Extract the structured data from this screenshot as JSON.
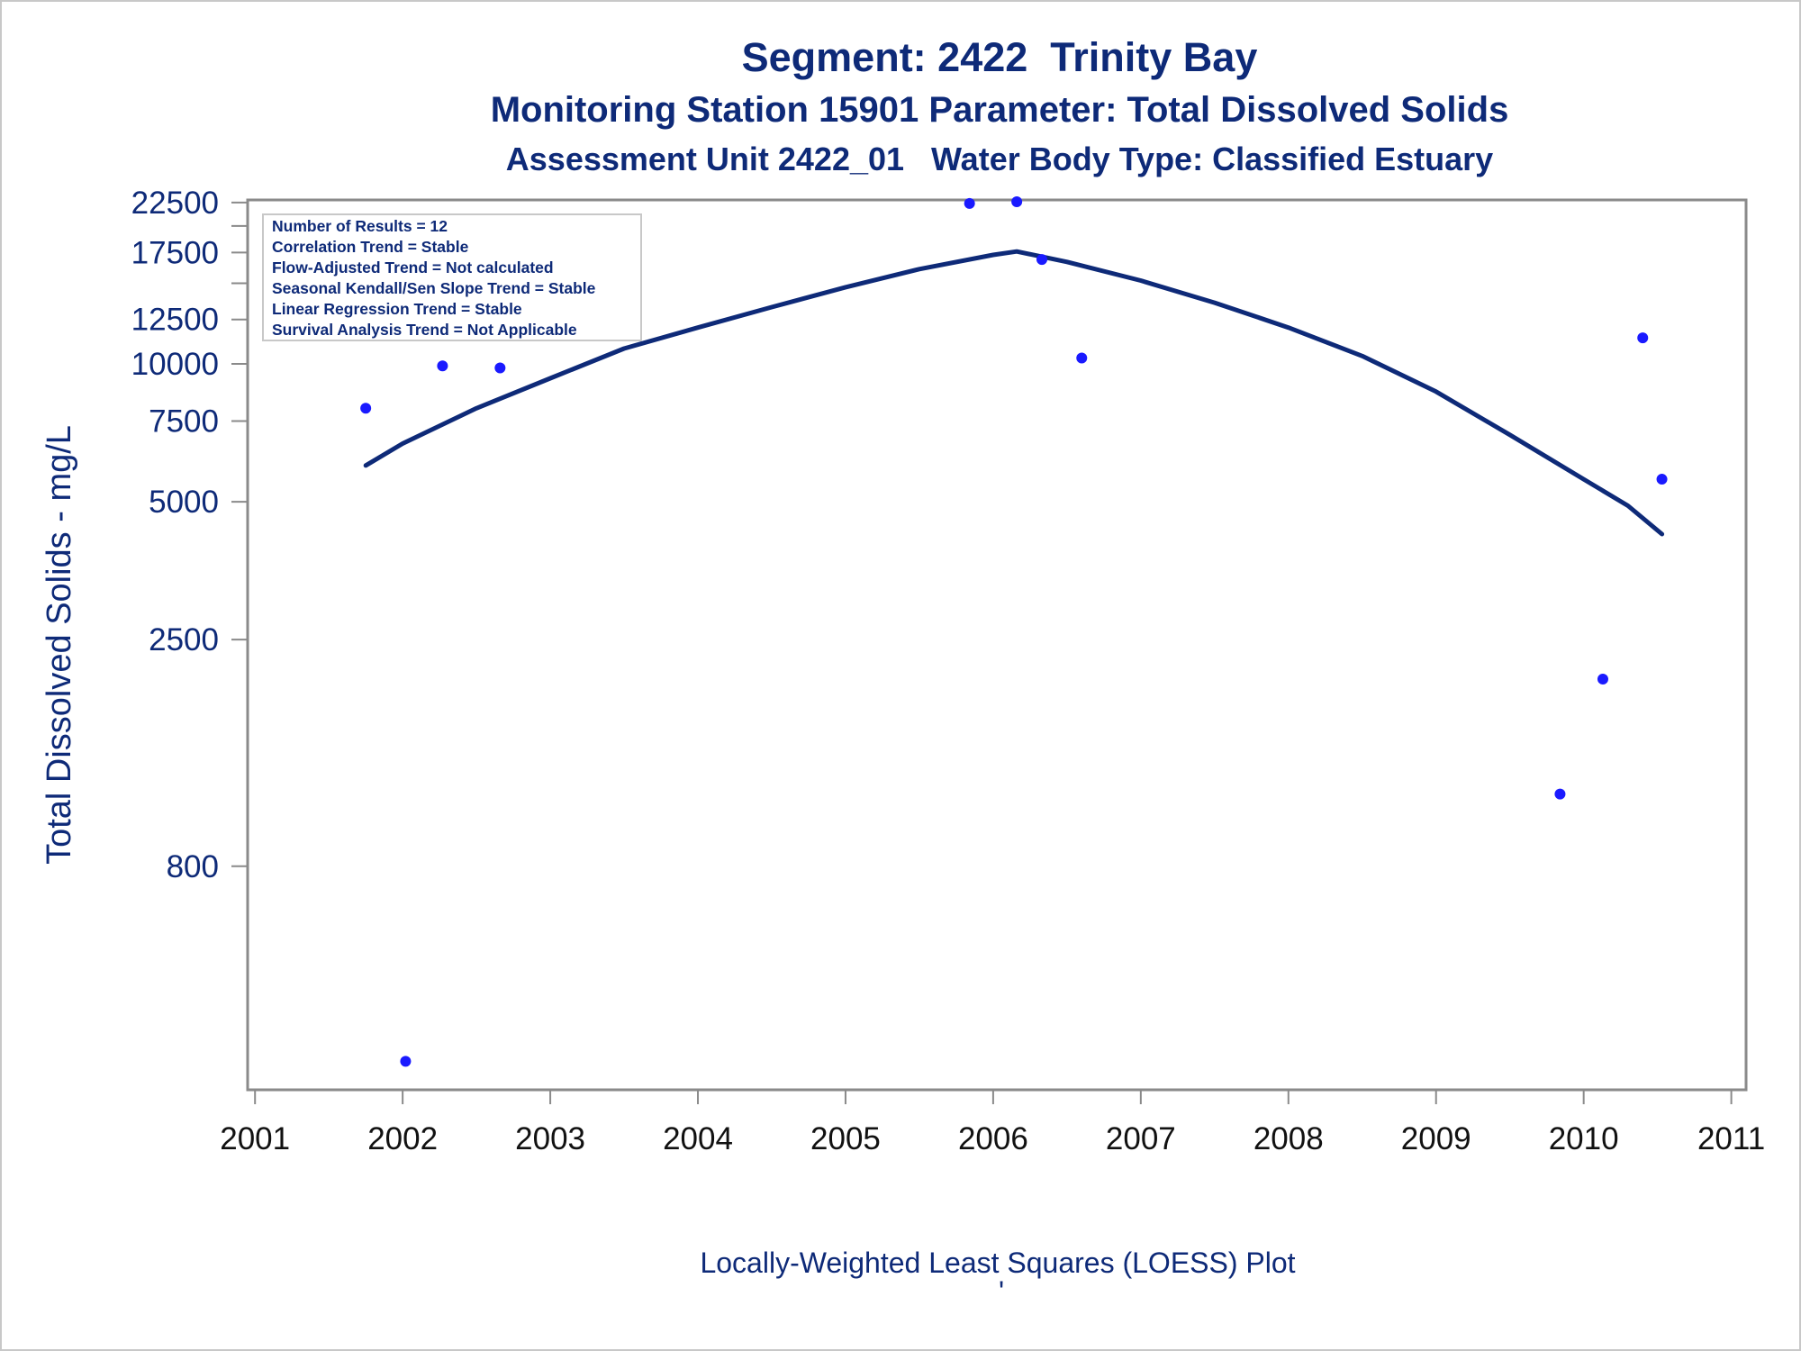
{
  "titles": {
    "line1": "Segment: 2422  Trinity Bay",
    "line2": "Monitoring Station 15901 Parameter: Total Dissolved Solids",
    "line3": "Assessment Unit 2422_01   Water Body Type: Classified Estuary"
  },
  "stats_box": [
    "Number of Results = 12",
    "Correlation Trend = Stable",
    "Flow-Adjusted Trend = Not calculated",
    "Seasonal Kendall/Sen Slope Trend = Stable",
    "Linear Regression Trend = Stable",
    "Survival Analysis Trend = Not Applicable"
  ],
  "footnote": "Locally-Weighted Least Squares (LOESS) Plot",
  "footnote_mark": "'",
  "colors": {
    "text": "#0e2a78",
    "points": "#1a1aff",
    "curve": "#0e2a78",
    "frame": "#8a8a8a"
  },
  "chart_data": {
    "type": "scatter",
    "xlabel": "",
    "ylabel": "Total Dissolved Solids - mg/L",
    "xlim": [
      2000.95,
      2011.1
    ],
    "ylim": [
      260,
      22800
    ],
    "y_scale": "log",
    "x_ticks": [
      2001,
      2002,
      2003,
      2004,
      2005,
      2006,
      2007,
      2008,
      2009,
      2010,
      2011
    ],
    "x_tick_labels": [
      "2001",
      "2002",
      "2003",
      "2004",
      "2005",
      "2006",
      "2007",
      "2008",
      "2009",
      "2010",
      "2011"
    ],
    "y_ticks": [
      800,
      2500,
      5000,
      7500,
      10000,
      12500,
      15000,
      17500,
      20000,
      22500
    ],
    "y_tick_labels": [
      "800",
      "2500",
      "5000",
      "7500",
      "10000",
      "12500",
      "",
      "17500",
      "",
      "22500"
    ],
    "grid": false,
    "series": [
      {
        "type": "scatter",
        "x": [
          2001.75,
          2002.02,
          2002.27,
          2002.66,
          2005.84,
          2006.16,
          2006.33,
          2006.6,
          2009.84,
          2010.13,
          2010.4,
          2010.53
        ],
        "y": [
          8000,
          300,
          9900,
          9800,
          22400,
          22600,
          16900,
          10300,
          1150,
          2050,
          11400,
          5600
        ]
      },
      {
        "type": "line",
        "x": [
          2001.75,
          2002.0,
          2002.5,
          2003.0,
          2003.5,
          2004.0,
          2004.5,
          2005.0,
          2005.5,
          2006.0,
          2006.16,
          2006.5,
          2007.0,
          2007.5,
          2008.0,
          2008.5,
          2009.0,
          2009.5,
          2010.0,
          2010.3,
          2010.53
        ],
        "y": [
          6000,
          6700,
          8000,
          9300,
          10800,
          12000,
          13300,
          14700,
          16100,
          17300,
          17600,
          16700,
          15200,
          13600,
          12000,
          10400,
          8700,
          7000,
          5600,
          4900,
          4250
        ]
      }
    ]
  }
}
